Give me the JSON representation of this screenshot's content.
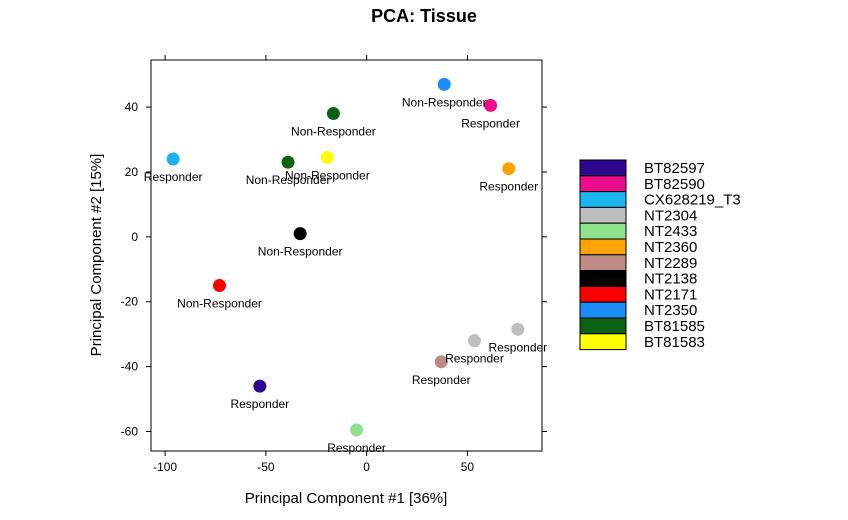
{
  "chart_data": {
    "type": "scatter",
    "title": "PCA: Tissue",
    "xlabel": "Principal Component #1 [36%]",
    "ylabel": "Principal Component #2 [15%]",
    "xlim": [
      -107,
      87
    ],
    "ylim": [
      -66,
      54.5
    ],
    "xticks": [
      -100,
      -50,
      0,
      50
    ],
    "xtick_labels": [
      "-100",
      "-50",
      "0",
      "50"
    ],
    "yticks": [
      -60,
      -40,
      -20,
      0,
      20,
      40
    ],
    "ytick_labels": [
      "-60",
      "-40",
      "-20",
      "0",
      "20",
      "40"
    ],
    "grid": false,
    "legend_position": "right",
    "series": [
      {
        "name": "BT82597",
        "color": "#2E0790",
        "x": -53,
        "y": -46,
        "label": "Responder"
      },
      {
        "name": "BT82590",
        "color": "#EC0C8C",
        "x": 61.5,
        "y": 40.5,
        "label": "Responder"
      },
      {
        "name": "CX628219_T3",
        "color": "#1BB6EE",
        "x": -96,
        "y": 24,
        "label": "Responder"
      },
      {
        "name": "NT2304",
        "color": "#BEBEBE",
        "x": 75,
        "y": -28.5,
        "label": "Responder"
      },
      {
        "name": "NT2433",
        "color": "#8EE48C",
        "x": -5,
        "y": -59.5,
        "label": "Responder"
      },
      {
        "name": "NT2360",
        "color": "#FBA300",
        "x": 70.5,
        "y": 21,
        "label": "Responder"
      },
      {
        "name": "NT2289",
        "color": "#BD8A86",
        "x": 37,
        "y": -38.5,
        "label": "Responder"
      },
      {
        "name": "NT2138",
        "color": "#000000",
        "x": -33,
        "y": 1,
        "label": "Non-Responder"
      },
      {
        "name": "NT2171",
        "color": "#FC0000",
        "x": -73,
        "y": -15,
        "label": "Non-Responder"
      },
      {
        "name": "NT2350",
        "color": "#1C8CF8",
        "x": 38.5,
        "y": 47,
        "label": "Non-Responder"
      },
      {
        "name": "BT81585",
        "color": "#0B6212",
        "x": -16.5,
        "y": 38,
        "label": "Non-Responder"
      },
      {
        "name": "BT81583",
        "color": "#FEFF00",
        "x": -19.5,
        "y": 24.5,
        "label": "Non-Responder"
      }
    ],
    "extra_points": [
      {
        "color": "#0B6212",
        "x": -39,
        "y": 23,
        "label": "Non-Responder"
      },
      {
        "color": "#BEBEBE",
        "x": 53.5,
        "y": -32,
        "label": "Responder"
      }
    ]
  }
}
